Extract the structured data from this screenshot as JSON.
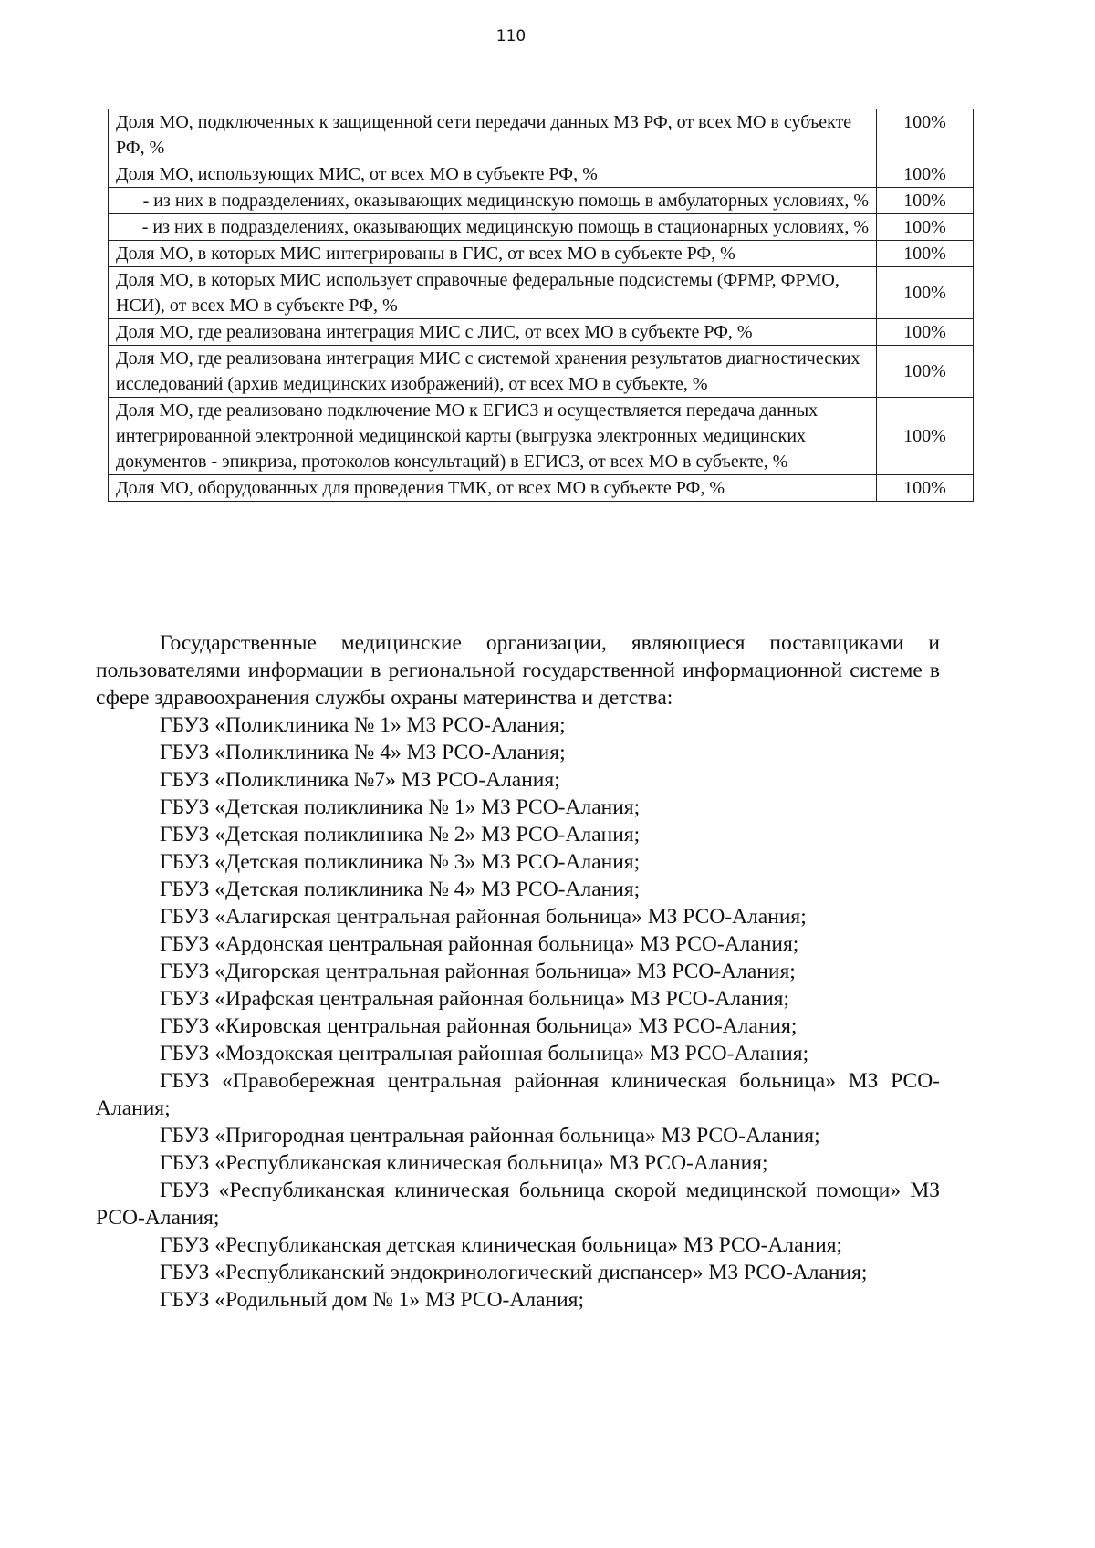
{
  "page_number": "110",
  "table": {
    "rows": [
      {
        "text": "Доля МО, подключенных к защищенной сети передачи данных МЗ РФ, от всех МО в субъекте РФ, %",
        "value": "100%",
        "sub": false
      },
      {
        "text": "Доля МО, использующих МИС, от всех МО в субъекте РФ, %",
        "value": "100%",
        "sub": false
      },
      {
        "text": "- из них в подразделениях, оказывающих медицинскую помощь в амбулаторных условиях, %",
        "value": "100%",
        "sub": true
      },
      {
        "text": "- из них в подразделениях, оказывающих медицинскую помощь в стационарных условиях, %",
        "value": "100%",
        "sub": true
      },
      {
        "text": "Доля МО, в которых МИС интегрированы в ГИС, от всех МО в субъекте РФ, %",
        "value": "100%",
        "sub": false
      },
      {
        "text": "Доля МО, в которых МИС использует справочные федеральные подсистемы (ФРМР, ФРМО, НСИ), от всех МО в субъекте РФ, %",
        "value": "100%",
        "sub": false
      },
      {
        "text": "Доля МО, где реализована интеграция МИС с ЛИС, от всех МО в субъекте РФ, %",
        "value": "100%",
        "sub": false
      },
      {
        "text": "Доля МО, где реализована интеграция МИС с системой хранения результатов диагностических исследований (архив медицинских изображений), от всех МО в субъекте, %",
        "value": "100%",
        "sub": false
      },
      {
        "text": "Доля МО, где реализовано подключение МО к ЕГИСЗ и осуществляется передача данных интегрированной электронной медицинской карты (выгрузка электронных медицинских документов - эпикриза, протоколов консультаций) в ЕГИСЗ, от всех МО в субъекте, %",
        "value": "100%",
        "sub": false
      },
      {
        "text": "Доля МО, оборудованных для проведения ТМК, от всех МО в субъекте РФ, %",
        "value": "100%",
        "sub": false
      }
    ]
  },
  "intro": "Государственные медицинские организации, являющиеся поставщиками и пользователями информации в региональной государственной информационной системе в сфере здравоохранения службы охраны материнства и детства:",
  "organizations": [
    "ГБУЗ «Поликлиника № 1» МЗ РСО-Алания;",
    "ГБУЗ «Поликлиника № 4» МЗ РСО-Алания;",
    "ГБУЗ «Поликлиника №7» МЗ РСО-Алания;",
    "ГБУЗ «Детская поликлиника № 1» МЗ РСО-Алания;",
    "ГБУЗ «Детская поликлиника № 2» МЗ РСО-Алания;",
    "ГБУЗ «Детская поликлиника № 3» МЗ РСО-Алания;",
    "ГБУЗ «Детская поликлиника № 4» МЗ РСО-Алания;",
    "ГБУЗ «Алагирская центральная районная больница» МЗ РСО-Алания;",
    "ГБУЗ «Ардонская центральная районная больница» МЗ РСО-Алания;",
    "ГБУЗ «Дигорская центральная районная больница» МЗ РСО-Алания;",
    "ГБУЗ «Ирафская центральная районная больница» МЗ РСО-Алания;",
    "ГБУЗ «Кировская центральная районная больница» МЗ РСО-Алания;",
    "ГБУЗ «Моздокская центральная районная больница» МЗ РСО-Алания;",
    "ГБУЗ «Правобережная центральная районная клиническая больница» МЗ РСО-Алания;",
    "ГБУЗ «Пригородная центральная районная больница» МЗ РСО-Алания;",
    "ГБУЗ «Республиканская клиническая больница» МЗ РСО-Алания;",
    "ГБУЗ «Республиканская клиническая больница скорой медицинской помощи» МЗ РСО-Алания;",
    "ГБУЗ «Республиканская детская клиническая больница» МЗ РСО-Алания;",
    "ГБУЗ «Республиканский эндокринологический диспансер» МЗ РСО-Алания;",
    "ГБУЗ «Родильный дом № 1» МЗ РСО-Алания;"
  ]
}
